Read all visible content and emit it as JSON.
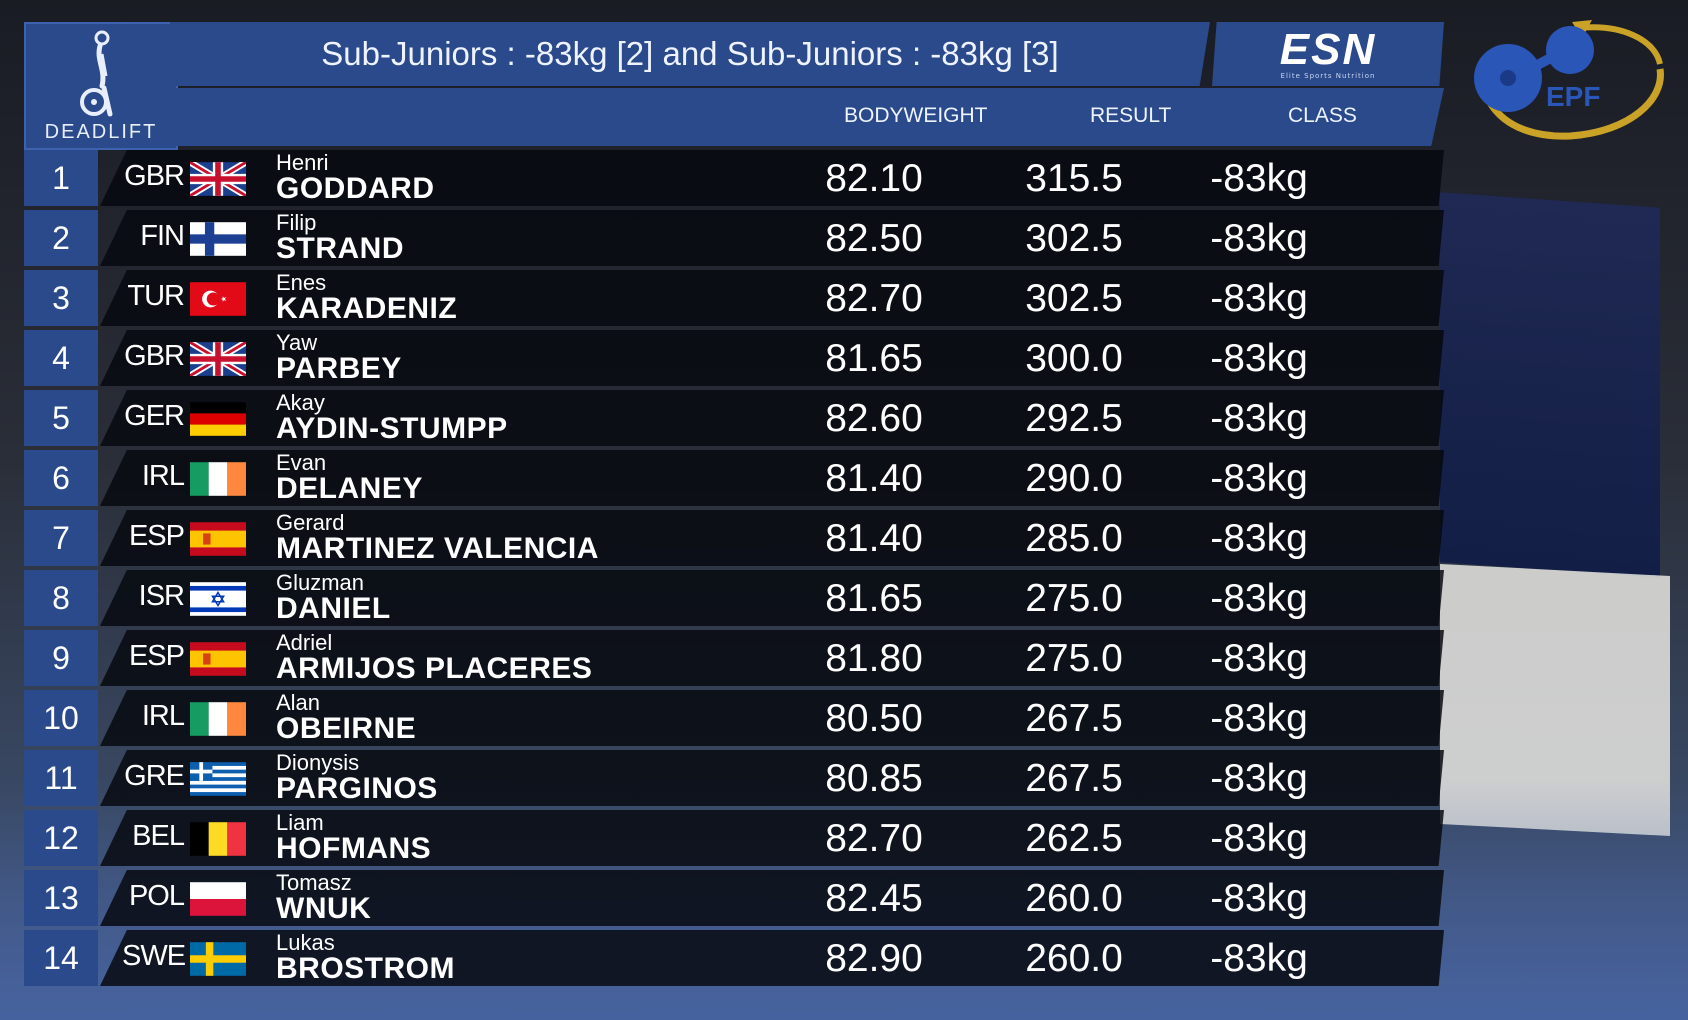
{
  "header": {
    "discipline_label": "DEADLIFT",
    "title": "Sub-Juniors : -83kg [2] and Sub-Juniors : -83kg [3]",
    "sponsor": "ESN",
    "sponsor_tagline": "Elite Sports Nutrition",
    "federation": "EPF"
  },
  "columns": {
    "bodyweight": "BODYWEIGHT",
    "result": "RESULT",
    "class": "CLASS"
  },
  "colors": {
    "panel_blue": "#2a4a8c",
    "row_dark": "#06080e",
    "epf_gold": "#c9a227",
    "epf_blue": "#2a56b8"
  },
  "rows": [
    {
      "rank": "1",
      "country": "GBR",
      "flag": "gbr",
      "first": "Henri",
      "last": "GODDARD",
      "bodyweight": "82.10",
      "result": "315.5",
      "class": "-83kg"
    },
    {
      "rank": "2",
      "country": "FIN",
      "flag": "fin",
      "first": "Filip",
      "last": "STRAND",
      "bodyweight": "82.50",
      "result": "302.5",
      "class": "-83kg"
    },
    {
      "rank": "3",
      "country": "TUR",
      "flag": "tur",
      "first": "Enes",
      "last": "KARADENIZ",
      "bodyweight": "82.70",
      "result": "302.5",
      "class": "-83kg"
    },
    {
      "rank": "4",
      "country": "GBR",
      "flag": "gbr",
      "first": "Yaw",
      "last": "PARBEY",
      "bodyweight": "81.65",
      "result": "300.0",
      "class": "-83kg"
    },
    {
      "rank": "5",
      "country": "GER",
      "flag": "ger",
      "first": "Akay",
      "last": "AYDIN-STUMPP",
      "bodyweight": "82.60",
      "result": "292.5",
      "class": "-83kg"
    },
    {
      "rank": "6",
      "country": "IRL",
      "flag": "irl",
      "first": "Evan",
      "last": "DELANEY",
      "bodyweight": "81.40",
      "result": "290.0",
      "class": "-83kg"
    },
    {
      "rank": "7",
      "country": "ESP",
      "flag": "esp",
      "first": "Gerard",
      "last": "MARTINEZ VALENCIA",
      "bodyweight": "81.40",
      "result": "285.0",
      "class": "-83kg"
    },
    {
      "rank": "8",
      "country": "ISR",
      "flag": "isr",
      "first": "Gluzman",
      "last": "DANIEL",
      "bodyweight": "81.65",
      "result": "275.0",
      "class": "-83kg"
    },
    {
      "rank": "9",
      "country": "ESP",
      "flag": "esp",
      "first": "Adriel",
      "last": "ARMIJOS PLACERES",
      "bodyweight": "81.80",
      "result": "275.0",
      "class": "-83kg"
    },
    {
      "rank": "10",
      "country": "IRL",
      "flag": "irl",
      "first": "Alan",
      "last": "OBEIRNE",
      "bodyweight": "80.50",
      "result": "267.5",
      "class": "-83kg"
    },
    {
      "rank": "11",
      "country": "GRE",
      "flag": "gre",
      "first": "Dionysis",
      "last": "PARGINOS",
      "bodyweight": "80.85",
      "result": "267.5",
      "class": "-83kg"
    },
    {
      "rank": "12",
      "country": "BEL",
      "flag": "bel",
      "first": "Liam",
      "last": "HOFMANS",
      "bodyweight": "82.70",
      "result": "262.5",
      "class": "-83kg"
    },
    {
      "rank": "13",
      "country": "POL",
      "flag": "pol",
      "first": "Tomasz",
      "last": "WNUK",
      "bodyweight": "82.45",
      "result": "260.0",
      "class": "-83kg"
    },
    {
      "rank": "14",
      "country": "SWE",
      "flag": "swe",
      "first": "Lukas",
      "last": "BROSTROM",
      "bodyweight": "82.90",
      "result": "260.0",
      "class": "-83kg"
    }
  ]
}
